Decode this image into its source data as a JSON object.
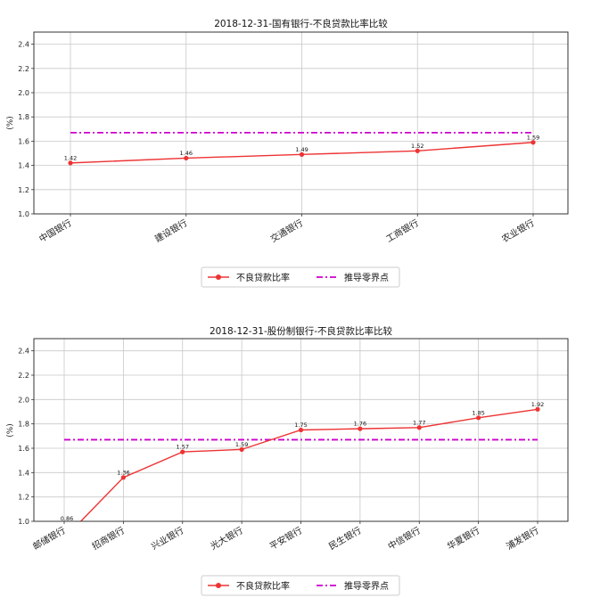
{
  "colors": {
    "npl_line": "#ee3333",
    "breakeven_line": "#cc00cc"
  },
  "legend": {
    "npl_label": "不良贷款比率",
    "breakeven_label": "推导零界点"
  },
  "chart_data": [
    {
      "type": "line",
      "title": "2018-12-31-国有银行-不良贷款比率比较",
      "ylabel": "(%)",
      "ylim": [
        1.0,
        2.5
      ],
      "yticks": [
        "1.0",
        "1.2",
        "1.4",
        "1.6",
        "1.8",
        "2.0",
        "2.2",
        "2.4"
      ],
      "categories": [
        "中国银行",
        "建设银行",
        "交通银行",
        "工商银行",
        "农业银行"
      ],
      "series": [
        {
          "name": "不良贷款比率",
          "values": [
            1.42,
            1.46,
            1.49,
            1.52,
            1.59
          ],
          "labels": [
            "1.42",
            "1.46",
            "1.49",
            "1.52",
            "1.59"
          ]
        },
        {
          "name": "推导零界点",
          "values": [
            1.67,
            1.67,
            1.67,
            1.67,
            1.67
          ]
        }
      ],
      "grid": true,
      "legend_position": "bottom-center"
    },
    {
      "type": "line",
      "title": "2018-12-31-股份制银行-不良贷款比率比较",
      "ylabel": "(%)",
      "ylim": [
        1.0,
        2.5
      ],
      "yticks": [
        "1.0",
        "1.2",
        "1.4",
        "1.6",
        "1.8",
        "2.0",
        "2.2",
        "2.4"
      ],
      "categories": [
        "邮储银行",
        "招商银行",
        "兴业银行",
        "光大银行",
        "平安银行",
        "民生银行",
        "中信银行",
        "华夏银行",
        "浦发银行"
      ],
      "series": [
        {
          "name": "不良贷款比率",
          "values": [
            0.86,
            1.36,
            1.57,
            1.59,
            1.75,
            1.76,
            1.77,
            1.85,
            1.92
          ],
          "labels": [
            "0.86",
            "1.36",
            "1.57",
            "1.59",
            "1.75",
            "1.76",
            "1.77",
            "1.85",
            "1.92"
          ]
        },
        {
          "name": "推导零界点",
          "values": [
            1.67,
            1.67,
            1.67,
            1.67,
            1.67,
            1.67,
            1.67,
            1.67,
            1.67
          ]
        }
      ],
      "grid": true,
      "legend_position": "bottom-center"
    }
  ]
}
